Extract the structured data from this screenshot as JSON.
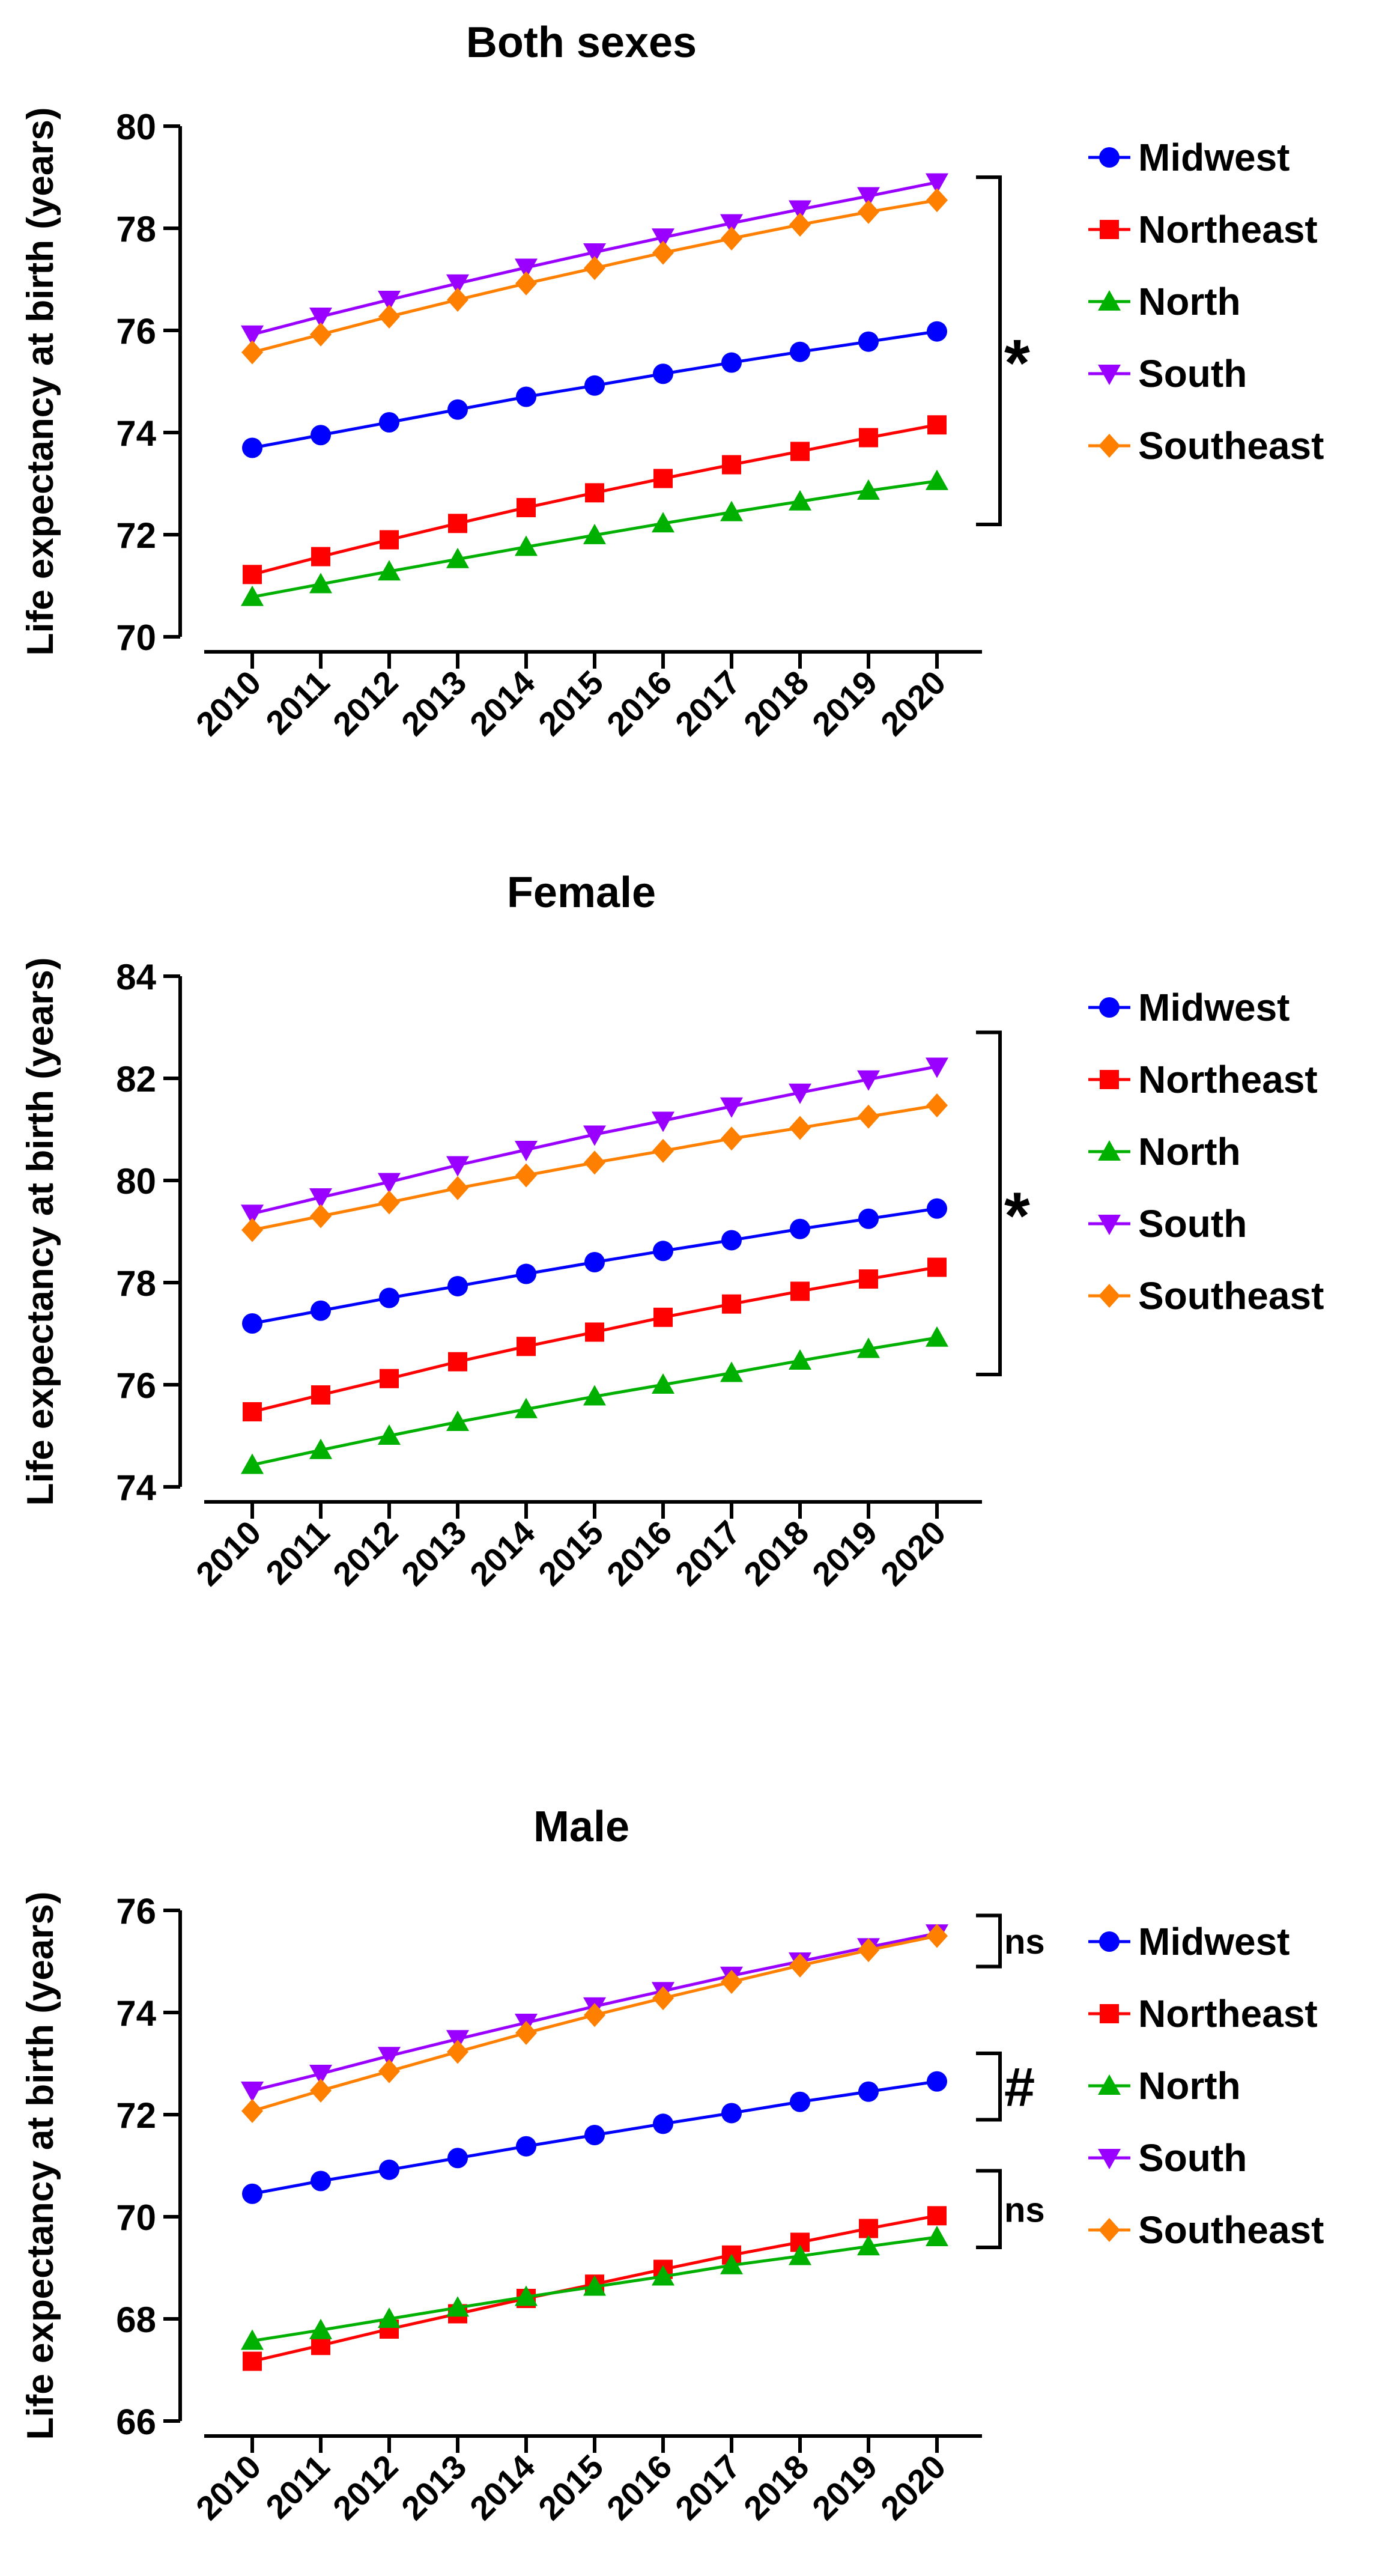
{
  "chart_data": [
    {
      "type": "line",
      "title": "Both sexes",
      "xlabel": "",
      "ylabel": "Life expectancy at birth (years)",
      "categories": [
        "2010",
        "2011",
        "2012",
        "2013",
        "2014",
        "2015",
        "2016",
        "2017",
        "2018",
        "2019",
        "2020"
      ],
      "ylim": [
        70,
        80
      ],
      "yticks": [
        70,
        72,
        74,
        76,
        78,
        80
      ],
      "grid": false,
      "legend": "right",
      "series": [
        {
          "name": "Midwest",
          "color": "#0000ff",
          "marker": "circle",
          "values": [
            73.7,
            73.95,
            74.2,
            74.45,
            74.7,
            74.92,
            75.15,
            75.37,
            75.58,
            75.78,
            75.98
          ]
        },
        {
          "name": "Northeast",
          "color": "#ff0000",
          "marker": "square",
          "values": [
            71.22,
            71.57,
            71.9,
            72.22,
            72.53,
            72.82,
            73.1,
            73.37,
            73.63,
            73.9,
            74.15
          ]
        },
        {
          "name": "North",
          "color": "#00b000",
          "marker": "triangle-up",
          "values": [
            70.78,
            71.03,
            71.28,
            71.52,
            71.76,
            71.99,
            72.22,
            72.44,
            72.65,
            72.86,
            73.05
          ]
        },
        {
          "name": "South",
          "color": "#9900ff",
          "marker": "triangle-down",
          "values": [
            75.92,
            76.27,
            76.6,
            76.92,
            77.23,
            77.53,
            77.82,
            78.1,
            78.37,
            78.63,
            78.9
          ]
        },
        {
          "name": "Southeast",
          "color": "#ff8000",
          "marker": "diamond",
          "values": [
            75.57,
            75.92,
            76.27,
            76.6,
            76.92,
            77.22,
            77.52,
            77.8,
            78.07,
            78.32,
            78.55
          ]
        }
      ],
      "annotations": [
        {
          "label": "*",
          "from_value": 79,
          "to_value": 72.2,
          "size": "large"
        }
      ]
    },
    {
      "type": "line",
      "title": "Female",
      "xlabel": "",
      "ylabel": "Life expectancy at birth (years)",
      "categories": [
        "2010",
        "2011",
        "2012",
        "2013",
        "2014",
        "2015",
        "2016",
        "2017",
        "2018",
        "2019",
        "2020"
      ],
      "ylim": [
        74,
        84
      ],
      "yticks": [
        74,
        76,
        78,
        80,
        82,
        84
      ],
      "grid": false,
      "legend": "right",
      "series": [
        {
          "name": "Midwest",
          "color": "#0000ff",
          "marker": "circle",
          "values": [
            77.2,
            77.45,
            77.7,
            77.93,
            78.17,
            78.4,
            78.62,
            78.83,
            79.05,
            79.25,
            79.45
          ]
        },
        {
          "name": "Northeast",
          "color": "#ff0000",
          "marker": "square",
          "values": [
            75.47,
            75.8,
            76.12,
            76.45,
            76.75,
            77.03,
            77.32,
            77.58,
            77.83,
            78.07,
            78.3
          ]
        },
        {
          "name": "North",
          "color": "#00b000",
          "marker": "triangle-up",
          "values": [
            74.43,
            74.72,
            75.0,
            75.27,
            75.52,
            75.77,
            76.0,
            76.23,
            76.47,
            76.7,
            76.92
          ]
        },
        {
          "name": "South",
          "color": "#9900ff",
          "marker": "triangle-down",
          "values": [
            79.35,
            79.67,
            79.97,
            80.3,
            80.6,
            80.9,
            81.17,
            81.45,
            81.72,
            81.98,
            82.23
          ]
        },
        {
          "name": "Southeast",
          "color": "#ff8000",
          "marker": "diamond",
          "values": [
            79.03,
            79.3,
            79.57,
            79.85,
            80.1,
            80.35,
            80.58,
            80.82,
            81.03,
            81.25,
            81.47
          ]
        }
      ],
      "annotations": [
        {
          "label": "*",
          "from_value": 82.9,
          "to_value": 76.2,
          "size": "large"
        }
      ]
    },
    {
      "type": "line",
      "title": "Male",
      "xlabel": "",
      "ylabel": "Life expectancy at birth (years)",
      "categories": [
        "2010",
        "2011",
        "2012",
        "2013",
        "2014",
        "2015",
        "2016",
        "2017",
        "2018",
        "2019",
        "2020"
      ],
      "ylim": [
        66,
        76
      ],
      "yticks": [
        66,
        68,
        70,
        72,
        74,
        76
      ],
      "grid": false,
      "legend": "right",
      "series": [
        {
          "name": "Midwest",
          "color": "#0000ff",
          "marker": "circle",
          "values": [
            70.45,
            70.7,
            70.92,
            71.15,
            71.38,
            71.6,
            71.82,
            72.03,
            72.25,
            72.45,
            72.65
          ]
        },
        {
          "name": "Northeast",
          "color": "#ff0000",
          "marker": "square",
          "values": [
            67.17,
            67.48,
            67.8,
            68.1,
            68.4,
            68.68,
            68.97,
            69.25,
            69.5,
            69.77,
            70.02
          ]
        },
        {
          "name": "North",
          "color": "#00b000",
          "marker": "triangle-up",
          "values": [
            67.57,
            67.78,
            68.0,
            68.22,
            68.43,
            68.63,
            68.83,
            69.05,
            69.23,
            69.42,
            69.6
          ]
        },
        {
          "name": "South",
          "color": "#9900ff",
          "marker": "triangle-down",
          "values": [
            72.47,
            72.8,
            73.15,
            73.48,
            73.8,
            74.12,
            74.42,
            74.72,
            75.0,
            75.28,
            75.55
          ]
        },
        {
          "name": "Southeast",
          "color": "#ff8000",
          "marker": "diamond",
          "values": [
            72.07,
            72.47,
            72.85,
            73.23,
            73.6,
            73.95,
            74.28,
            74.6,
            74.92,
            75.22,
            75.5
          ]
        }
      ],
      "annotations": [
        {
          "label": "ns",
          "from_value": 75.9,
          "to_value": 74.9,
          "size": "small"
        },
        {
          "label": "#",
          "from_value": 73.2,
          "to_value": 71.9,
          "size": "large"
        },
        {
          "label": "ns",
          "from_value": 70.9,
          "to_value": 69.4,
          "size": "small"
        }
      ]
    }
  ]
}
